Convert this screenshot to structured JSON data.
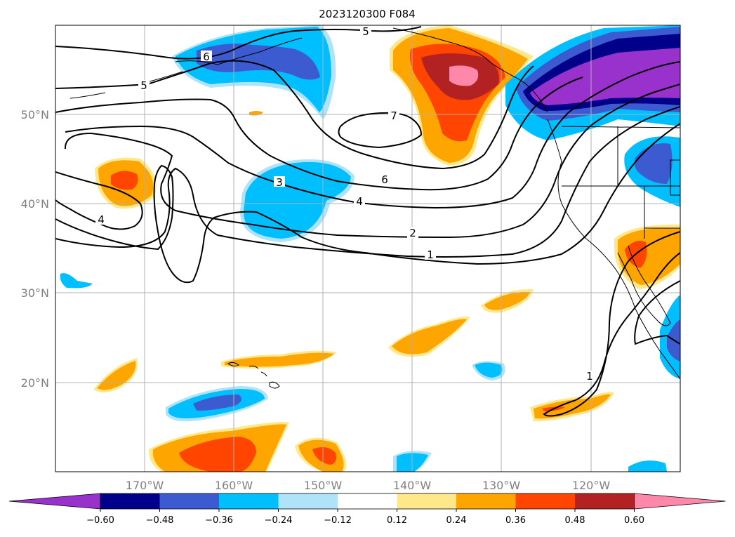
{
  "title": "2023120300 F084",
  "map": {
    "lat_labels": [
      "50°N",
      "40°N",
      "30°N",
      "20°N"
    ],
    "lon_labels": [
      "170°W",
      "160°W",
      "150°W",
      "140°W",
      "130°W",
      "120°W"
    ],
    "gridlines": true
  },
  "contour_labels": [
    "5",
    "6",
    "5",
    "7",
    "6",
    "3",
    "4",
    "4",
    "2",
    "1",
    "1"
  ],
  "colorbar": {
    "ticks": [
      "−0.60",
      "−0.48",
      "−0.36",
      "−0.24",
      "−0.12",
      "0.12",
      "0.24",
      "0.36",
      "0.48",
      "0.60"
    ],
    "colors": [
      "#9932cc",
      "#00008b",
      "#3d5bd0",
      "#00bfff",
      "#aee3fa",
      "#ffffff",
      "#ffe88a",
      "#ffa500",
      "#ff4500",
      "#b22222",
      "#ff88aa"
    ],
    "extend": "both"
  }
}
